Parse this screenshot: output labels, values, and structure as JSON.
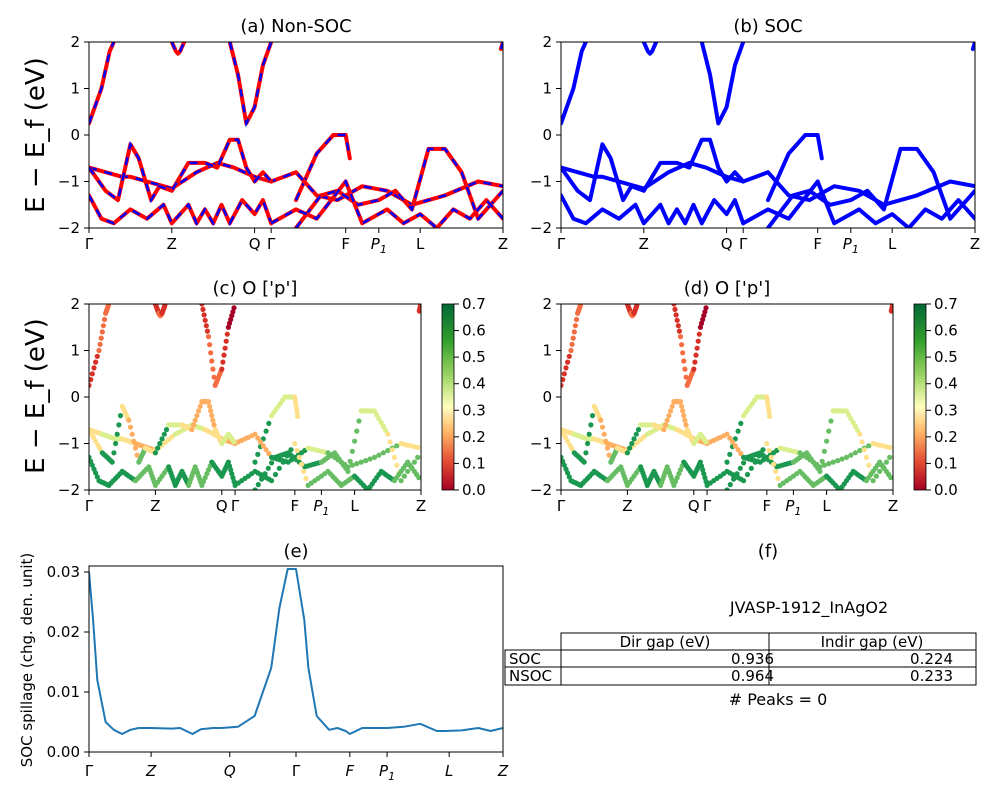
{
  "figure": {
    "panel_titles": {
      "a": "(a) Non-SOC",
      "b": "(b) SOC",
      "c": "(c)  O ['p']",
      "d": "(d) O ['p']",
      "e": "(e)",
      "f": "(f)"
    },
    "band_ylabel": "E − E_f (eV)",
    "spillage_ylabel": "SOC spillage (chg. den. unit)",
    "colorbar_ticks": [
      "0.0",
      "0.1",
      "0.2",
      "0.3",
      "0.4",
      "0.5",
      "0.6",
      "0.7"
    ],
    "kpath_labels_band": [
      "Γ",
      "Z",
      "Q",
      "Γ",
      "F",
      "P1",
      "L",
      "Z"
    ],
    "kpath_labels_spillage": [
      "Γ",
      "Z",
      "Q",
      "Γ",
      "F",
      "P1",
      "L",
      "Z"
    ],
    "table": {
      "title": "JVASP-1912_InAgO2",
      "col_headers": [
        "",
        "Dir gap (eV)",
        "Indir gap (eV)"
      ],
      "rows": [
        {
          "label": "SOC",
          "dir": "0.936",
          "indir": "0.224"
        },
        {
          "label": "NSOC",
          "dir": "0.964",
          "indir": "0.233"
        }
      ],
      "peaks": "# Peaks = 0"
    },
    "colors": {
      "nonsoc_band": "#ff0000",
      "soc_band": "#0000ff",
      "spillage_line": "#1f77b4"
    }
  },
  "chart_data": [
    {
      "type": "line",
      "title": "(a) Non-SOC",
      "ylabel": "E − E_f (eV)",
      "ylim": [
        -2,
        2
      ],
      "yticks": [
        -2,
        -1,
        0,
        1,
        2
      ],
      "xticks": [
        0,
        0.2,
        0.4,
        0.44,
        0.62,
        0.7,
        0.8,
        1.0
      ],
      "xticklabels": [
        "Γ",
        "Z",
        "Q",
        "Γ",
        "F",
        "P1",
        "L",
        "Z"
      ],
      "series": [
        {
          "x": [
            0,
            0.03,
            0.05,
            0.06
          ],
          "y": [
            0.25,
            1.0,
            1.8,
            2.0
          ]
        },
        {
          "x": [
            0.2,
            0.21,
            0.215,
            0.22,
            0.23
          ],
          "y": [
            2.0,
            1.8,
            1.75,
            1.8,
            2.0
          ]
        },
        {
          "x": [
            0.34,
            0.36,
            0.38,
            0.4,
            0.42,
            0.44
          ],
          "y": [
            2.0,
            1.3,
            0.25,
            0.6,
            1.5,
            2.0
          ]
        },
        {
          "x": [
            0.5,
            0.55,
            0.59,
            0.62,
            0.63
          ],
          "y": [
            -1.4,
            -0.4,
            0.0,
            0.0,
            -0.5
          ]
        },
        {
          "x": [
            0.995,
            1.0
          ],
          "y": [
            1.85,
            2.0
          ]
        },
        {
          "x": [
            0,
            0.04,
            0.08,
            0.1,
            0.14,
            0.18,
            0.2,
            0.26,
            0.31,
            0.35,
            0.4,
            0.44,
            0.5,
            0.55,
            0.6,
            0.66,
            0.72,
            0.78,
            0.86,
            0.94,
            1.0
          ],
          "y": [
            -0.7,
            -0.8,
            -0.9,
            -0.9,
            -1.0,
            -1.1,
            -1.15,
            -0.8,
            -0.6,
            -0.7,
            -0.9,
            -1.0,
            -0.8,
            -1.3,
            -1.4,
            -1.1,
            -1.2,
            -1.5,
            -1.3,
            -1.0,
            -1.1
          ]
        },
        {
          "x": [
            0,
            0.04,
            0.07,
            0.1,
            0.12,
            0.15,
            0.17,
            0.2,
            0.24,
            0.28,
            0.31,
            0.34,
            0.36,
            0.38,
            0.4,
            0.42,
            0.44
          ],
          "y": [
            -0.7,
            -1.2,
            -1.4,
            -0.2,
            -0.5,
            -1.4,
            -1.1,
            -1.2,
            -0.6,
            -0.6,
            -0.7,
            -0.1,
            -0.1,
            -0.7,
            -1.0,
            -0.8,
            -1.0
          ]
        },
        {
          "x": [
            0.5,
            0.56,
            0.6,
            0.65,
            0.7,
            0.74,
            0.78,
            0.82,
            0.86,
            0.9,
            0.94,
            1.0
          ],
          "y": [
            -2.0,
            -1.3,
            -1.2,
            -1.5,
            -1.4,
            -1.2,
            -1.6,
            -0.3,
            -0.3,
            -0.8,
            -1.8,
            -1.2
          ]
        },
        {
          "x": [
            0,
            0.03,
            0.06,
            0.1,
            0.14,
            0.18,
            0.2,
            0.24,
            0.26,
            0.28,
            0.3,
            0.32,
            0.34,
            0.37,
            0.4,
            0.42,
            0.44
          ],
          "y": [
            -1.3,
            -1.8,
            -1.9,
            -1.6,
            -1.8,
            -1.5,
            -1.9,
            -1.5,
            -1.9,
            -1.6,
            -1.9,
            -1.5,
            -1.9,
            -1.4,
            -1.7,
            -1.4,
            -1.9
          ]
        },
        {
          "x": [
            0.44,
            0.5,
            0.55,
            0.62,
            0.66,
            0.72,
            0.76,
            0.8,
            0.84,
            0.88,
            0.92,
            0.96,
            1.0
          ],
          "y": [
            -1.9,
            -1.6,
            -1.8,
            -1.0,
            -1.9,
            -1.6,
            -1.9,
            -1.7,
            -2.0,
            -1.6,
            -1.8,
            -1.4,
            -1.8
          ]
        }
      ]
    },
    {
      "type": "line",
      "title": "(b) SOC",
      "ylim": [
        -2,
        2
      ],
      "yticks": [
        -2,
        -1,
        0,
        1,
        2
      ],
      "xticks": [
        0,
        0.2,
        0.4,
        0.44,
        0.62,
        0.7,
        0.8,
        1.0
      ],
      "xticklabels": [
        "Γ",
        "Z",
        "Q",
        "Γ",
        "F",
        "P1",
        "L",
        "Z"
      ],
      "series": "same band structure as (a), drawn in blue"
    },
    {
      "type": "scatter",
      "title": "(c)  O ['p']",
      "ylim": [
        -2,
        2
      ],
      "colorbar_range": [
        0.0,
        0.7
      ],
      "xticklabels": [
        "Γ",
        "Z",
        "Q",
        "Γ",
        "F",
        "P1",
        "L",
        "Z"
      ]
    },
    {
      "type": "scatter",
      "title": "(d) O ['p']",
      "ylim": [
        -2,
        2
      ],
      "colorbar_range": [
        0.0,
        0.7
      ],
      "xticklabels": [
        "Γ",
        "Z",
        "Q",
        "Γ",
        "F",
        "P1",
        "L",
        "Z"
      ]
    },
    {
      "type": "line",
      "title": "(e)",
      "ylabel": "SOC spillage (chg. den. unit)",
      "ylim": [
        0,
        0.031
      ],
      "yticks": [
        0.0,
        0.01,
        0.02,
        0.03
      ],
      "yticklabels": [
        "0.00",
        "0.01",
        "0.02",
        "0.03"
      ],
      "xticks": [
        0,
        0.15,
        0.34,
        0.5,
        0.63,
        0.72,
        0.87,
        1.0
      ],
      "xticklabels": [
        "Γ",
        "Z",
        "Q",
        "Γ",
        "F",
        "P1",
        "L",
        "Z"
      ],
      "x": [
        0,
        0.01,
        0.02,
        0.04,
        0.06,
        0.08,
        0.1,
        0.12,
        0.15,
        0.2,
        0.22,
        0.25,
        0.27,
        0.3,
        0.32,
        0.36,
        0.4,
        0.44,
        0.46,
        0.48,
        0.5,
        0.52,
        0.53,
        0.55,
        0.58,
        0.6,
        0.62,
        0.63,
        0.66,
        0.7,
        0.72,
        0.76,
        0.8,
        0.84,
        0.86,
        0.9,
        0.94,
        0.97,
        1.0
      ],
      "y": [
        0.03,
        0.022,
        0.012,
        0.005,
        0.0037,
        0.003,
        0.0037,
        0.004,
        0.004,
        0.0039,
        0.004,
        0.003,
        0.0038,
        0.004,
        0.004,
        0.0042,
        0.006,
        0.014,
        0.024,
        0.0305,
        0.0305,
        0.022,
        0.014,
        0.006,
        0.0037,
        0.004,
        0.0035,
        0.003,
        0.004,
        0.004,
        0.004,
        0.0042,
        0.0047,
        0.0035,
        0.0035,
        0.0036,
        0.004,
        0.0035,
        0.004
      ]
    }
  ]
}
